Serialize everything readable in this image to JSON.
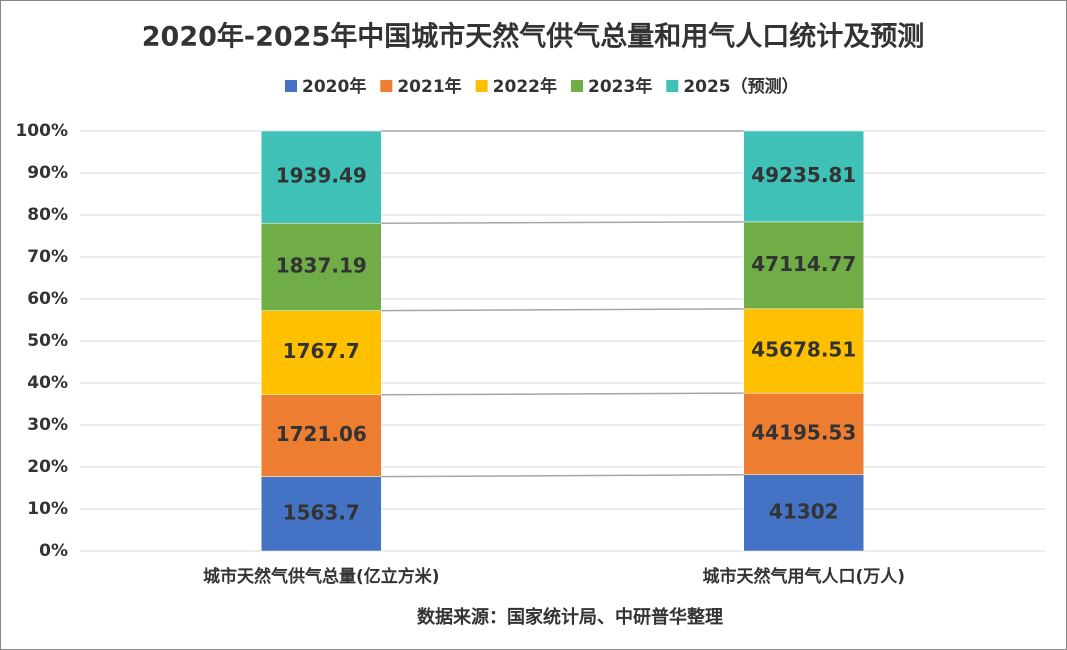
{
  "chart_data": {
    "type": "stacked-percent-bar",
    "title": "2020年-2025年中国城市天然气供气总量和用气人口统计及预测",
    "categories": [
      "城市天然气供气总量(亿立方米)",
      "城市天然气用气人口(万人)"
    ],
    "series": [
      {
        "name": "2020年",
        "color": "#4472c4",
        "values": [
          1563.7,
          41302
        ]
      },
      {
        "name": "2021年",
        "color": "#ed7d31",
        "values": [
          1721.06,
          44195.53
        ]
      },
      {
        "name": "2022年",
        "color": "#ffc000",
        "values": [
          1767.7,
          45678.51
        ]
      },
      {
        "name": "2023年",
        "color": "#70ad47",
        "values": [
          1837.19,
          47114.77
        ]
      },
      {
        "name": "2025（预测）",
        "color": "#3fc1b8",
        "values": [
          1939.49,
          49235.81
        ]
      }
    ],
    "ylim": [
      0,
      100
    ],
    "yticks": [
      {
        "value": 0,
        "label": "0%"
      },
      {
        "value": 10,
        "label": "10%"
      },
      {
        "value": 20,
        "label": "20%"
      },
      {
        "value": 30,
        "label": "30%"
      },
      {
        "value": 40,
        "label": "40%"
      },
      {
        "value": 50,
        "label": "50%"
      },
      {
        "value": 60,
        "label": "60%"
      },
      {
        "value": 70,
        "label": "70%"
      },
      {
        "value": 80,
        "label": "80%"
      },
      {
        "value": 90,
        "label": "90%"
      },
      {
        "value": 100,
        "label": "100%"
      }
    ],
    "grid": true,
    "legend": "top",
    "source": "数据来源：国家统计局、中研普华整理"
  }
}
